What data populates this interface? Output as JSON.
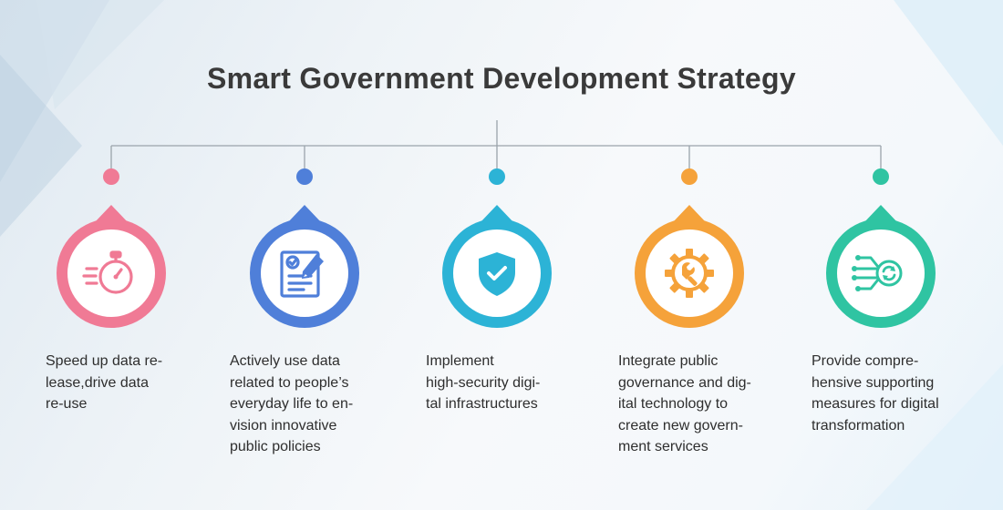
{
  "title": "Smart Government Development Strategy",
  "items": [
    {
      "text": [
        "Speed up data re-",
        "lease,drive data",
        "re-use"
      ],
      "color": "#f07a95",
      "icon": "stopwatch-icon"
    },
    {
      "text": [
        "Actively use data",
        "related to people’s",
        "everyday life to en-",
        "vision innovative",
        "public policies"
      ],
      "color": "#4f7fd9",
      "icon": "document-edit-icon"
    },
    {
      "text": [
        "Implement",
        "high-security digi-",
        "tal infrastructures"
      ],
      "color": "#2cb3d6",
      "icon": "shield-check-icon"
    },
    {
      "text": [
        "Integrate public",
        "governance and dig-",
        "ital technology to",
        "create new govern-",
        "ment services"
      ],
      "color": "#f5a23a",
      "icon": "gear-wrench-icon"
    },
    {
      "text": [
        "Provide compre-",
        "hensive supporting",
        "measures for digital",
        "transformation"
      ],
      "color": "#2fc4a2",
      "icon": "circuit-sync-icon"
    }
  ]
}
